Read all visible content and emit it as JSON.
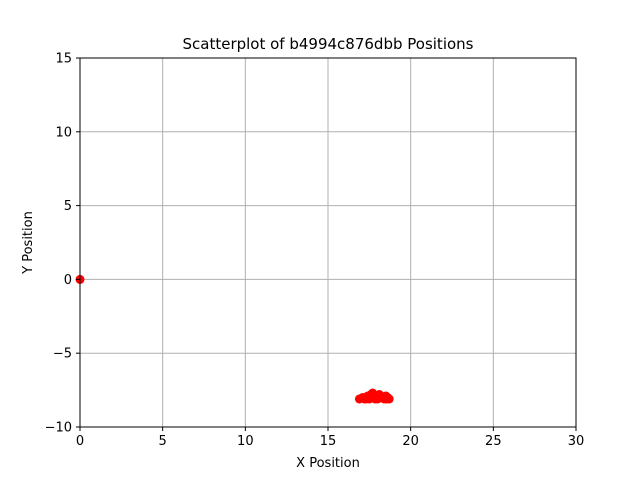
{
  "chart_data": {
    "type": "scatter",
    "title": "Scatterplot of b4994c876dbb Positions",
    "xlabel": "X Position",
    "ylabel": "Y Position",
    "xlim": [
      0,
      30
    ],
    "ylim": [
      -10,
      15
    ],
    "xticks": [
      0,
      5,
      10,
      15,
      20,
      25,
      30
    ],
    "yticks": [
      -10,
      -5,
      0,
      5,
      10,
      15
    ],
    "xtick_labels": [
      "0",
      "5",
      "10",
      "15",
      "20",
      "25",
      "30"
    ],
    "ytick_labels": [
      "−10",
      "−5",
      "0",
      "5",
      "10",
      "15"
    ],
    "grid": true,
    "marker_color": "#ff0000",
    "series": [
      {
        "points": [
          [
            0.0,
            0.0
          ],
          [
            16.9,
            -8.1
          ],
          [
            17.1,
            -8.0
          ],
          [
            17.3,
            -8.1
          ],
          [
            17.4,
            -7.9
          ],
          [
            17.5,
            -8.0
          ],
          [
            17.6,
            -7.8
          ],
          [
            17.7,
            -7.7
          ],
          [
            17.8,
            -8.0
          ],
          [
            17.9,
            -7.9
          ],
          [
            18.0,
            -8.1
          ],
          [
            18.1,
            -7.8
          ],
          [
            18.2,
            -7.9
          ],
          [
            18.3,
            -8.0
          ],
          [
            18.4,
            -8.1
          ],
          [
            18.5,
            -7.9
          ],
          [
            18.6,
            -8.0
          ],
          [
            18.7,
            -8.1
          ],
          [
            17.5,
            -8.1
          ],
          [
            18.0,
            -7.95
          ],
          [
            17.2,
            -8.1
          ],
          [
            18.35,
            -8.05
          ],
          [
            17.85,
            -8.1
          ],
          [
            18.55,
            -8.1
          ]
        ]
      }
    ]
  }
}
